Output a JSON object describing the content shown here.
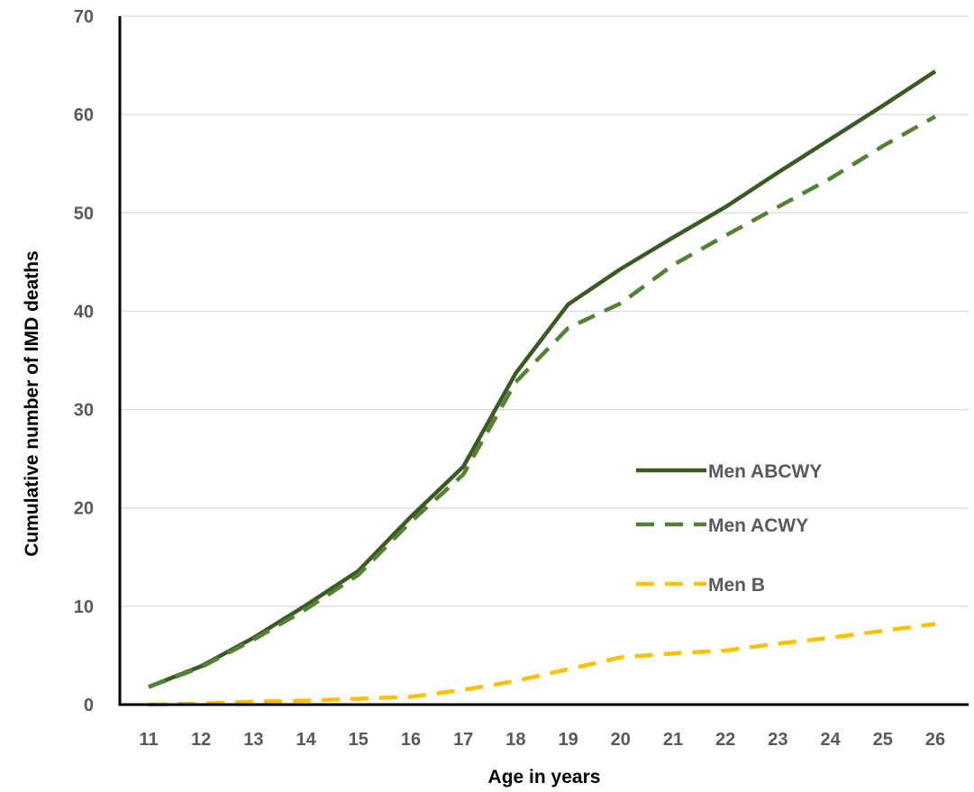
{
  "chart_data": {
    "type": "line",
    "title": "",
    "xlabel": "Age in years",
    "ylabel": "Cumulative number of IMD deaths",
    "categories": [
      "11",
      "12",
      "13",
      "14",
      "15",
      "16",
      "17",
      "18",
      "19",
      "20",
      "21",
      "22",
      "23",
      "24",
      "25",
      "26"
    ],
    "ylim": [
      0,
      70
    ],
    "yticks": [
      "0",
      "10",
      "20",
      "30",
      "40",
      "50",
      "60",
      "70"
    ],
    "grid": true,
    "legend_position": "right-center",
    "series": [
      {
        "name": "Men ABCWY",
        "color": "#3b5a23",
        "dash": "solid",
        "values": [
          1.8,
          3.9,
          6.8,
          10.1,
          13.6,
          19.1,
          24.2,
          33.7,
          40.7,
          44.3,
          47.5,
          50.6,
          54.1,
          57.5,
          60.9,
          64.4
        ]
      },
      {
        "name": "Men ACWY",
        "color": "#548235",
        "dash": "dashed",
        "values": [
          1.8,
          3.8,
          6.6,
          9.7,
          13.2,
          18.6,
          23.4,
          32.8,
          38.3,
          40.8,
          44.7,
          47.7,
          50.6,
          53.5,
          56.8,
          59.8
        ]
      },
      {
        "name": "Men B",
        "color": "#ffc000",
        "dash": "dashed",
        "values": [
          0.0,
          0.1,
          0.3,
          0.4,
          0.6,
          0.8,
          1.5,
          2.4,
          3.6,
          4.8,
          5.2,
          5.5,
          6.2,
          6.8,
          7.5,
          8.2
        ]
      }
    ]
  }
}
